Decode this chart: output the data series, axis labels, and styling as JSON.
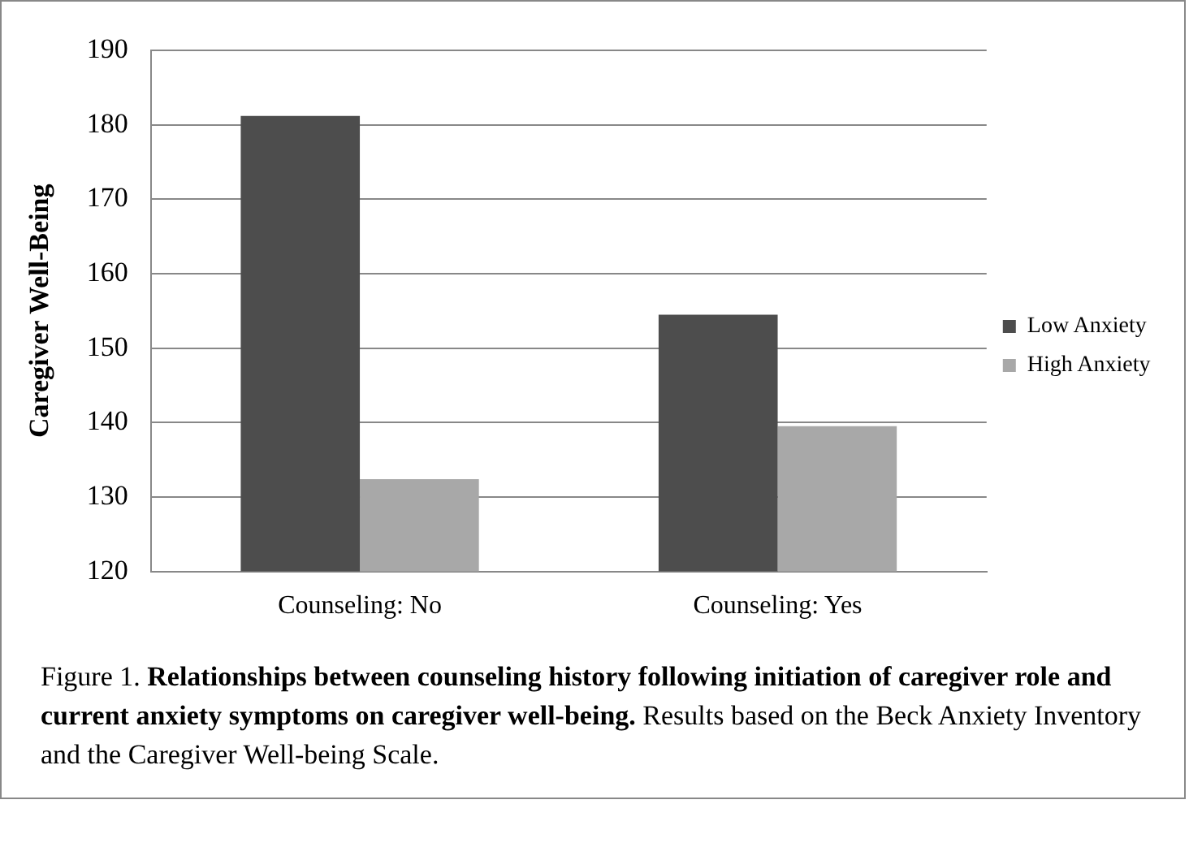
{
  "chart_data": {
    "type": "bar",
    "ylabel": "Caregiver Well-Being",
    "categories": [
      "Counseling: No",
      "Counseling: Yes"
    ],
    "series": [
      {
        "name": "Low Anxiety",
        "color": "#4d4d4d",
        "values": [
          181.2,
          154.5
        ]
      },
      {
        "name": "High Anxiety",
        "color": "#a8a8a8",
        "values": [
          132.4,
          139.5
        ]
      }
    ],
    "ylim": [
      120,
      190
    ],
    "yticks": [
      120,
      130,
      140,
      150,
      160,
      170,
      180,
      190
    ],
    "grid": "y",
    "legend": "right",
    "annotations": [
      "Figure 1.",
      "Relationships between counseling history following initiation of caregiver role and current anxiety symptoms on caregiver well-being.",
      "Results based on the Beck Anxiety Inventory and the Caregiver Well-being Scale."
    ]
  }
}
